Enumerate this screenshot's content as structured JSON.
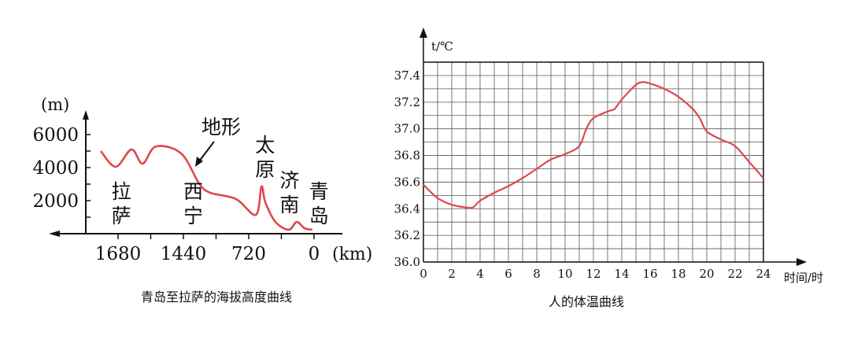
{
  "chart_data": [
    {
      "type": "line",
      "title": "青岛至拉萨的海拔高度曲线",
      "ylabel": "(m)",
      "xlabel": "(km)",
      "yticks": [
        2000,
        4000,
        6000
      ],
      "xtick_labels": [
        "1680",
        "",
        "1440",
        "",
        "720",
        "",
        "0"
      ],
      "x_direction": "right-to-left",
      "line_color": "#e0474c",
      "series": [
        {
          "name": "地形",
          "x_tick_index": [
            -0.53,
            -0.07,
            0.41,
            0.75,
            1.16,
            1.93,
            2.48,
            2.82,
            3.61,
            4.22,
            4.39,
            4.51,
            4.82,
            5.23,
            5.47,
            5.71,
            5.95
          ],
          "elevation_m": [
            5000,
            4050,
            5100,
            4240,
            5280,
            4860,
            3050,
            2480,
            2100,
            1140,
            2860,
            1900,
            710,
            240,
            710,
            330,
            240
          ]
        }
      ],
      "city_labels": [
        {
          "text": "拉\n萨",
          "lines": [
            "拉",
            "萨"
          ],
          "x_tick_index": 0.1
        },
        {
          "text": "西\n宁",
          "lines": [
            "西",
            "宁"
          ],
          "x_tick_index": 2.3
        },
        {
          "text": "太\n原",
          "lines": [
            "太",
            "原"
          ],
          "x_tick_index": 4.5
        },
        {
          "text": "济\n南",
          "lines": [
            "济",
            "南"
          ],
          "x_tick_index": 5.25
        },
        {
          "text": "青\n岛",
          "lines": [
            "青",
            "岛"
          ],
          "x_tick_index": 6.15
        }
      ],
      "annotation": "地形"
    },
    {
      "type": "line",
      "title": "人的体温曲线",
      "ylabel": "t/℃",
      "xlabel": "时间/时",
      "xlim": [
        0,
        24
      ],
      "ylim": [
        36.0,
        37.5
      ],
      "xticks": [
        0,
        2,
        4,
        6,
        8,
        10,
        12,
        14,
        16,
        18,
        20,
        22,
        24
      ],
      "yticks": [
        "36.0",
        "36.2",
        "36.4",
        "36.6",
        "36.8",
        "37.0",
        "37.2",
        "37.4"
      ],
      "grid": true,
      "line_color": "#e0474c",
      "x": [
        0,
        1,
        2,
        3,
        3.5,
        4,
        5,
        6,
        7,
        8,
        9,
        10,
        11,
        11.5,
        12,
        13,
        13.5,
        14,
        15,
        15.5,
        16,
        17,
        18,
        19,
        19.5,
        20,
        21,
        22,
        23,
        24
      ],
      "y": [
        36.58,
        36.48,
        36.43,
        36.41,
        36.41,
        36.46,
        36.52,
        36.57,
        36.63,
        36.7,
        36.77,
        36.81,
        36.87,
        37.0,
        37.08,
        37.13,
        37.15,
        37.22,
        37.33,
        37.35,
        37.34,
        37.3,
        37.24,
        37.15,
        37.08,
        36.98,
        36.92,
        36.87,
        36.75,
        36.63
      ]
    }
  ]
}
